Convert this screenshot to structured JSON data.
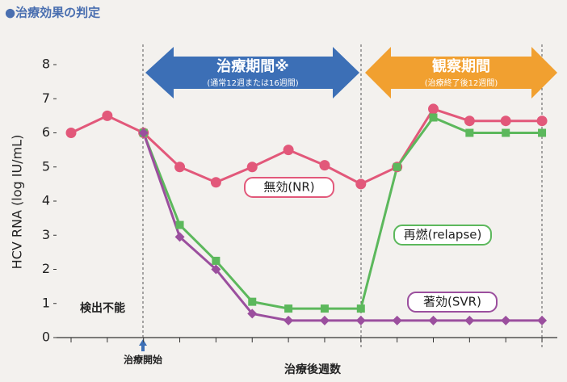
{
  "chart_data": {
    "type": "line",
    "title": "●治療効果の判定",
    "y_label": "HCV RNA (log IU/mL)",
    "x_label": "治療後週数",
    "categories": [
      null,
      null,
      null,
      null,
      null,
      null,
      null,
      null,
      null,
      null,
      null,
      null,
      null,
      null
    ],
    "series": [
      {
        "name": "無効(NR)",
        "color": "#e2587a",
        "values": [
          6,
          6.5,
          6,
          5,
          4.55,
          5,
          5.5,
          5.05,
          4.5,
          5,
          6.7,
          6.35,
          6.35,
          6.35
        ]
      },
      {
        "name": "再燃(relapse)",
        "color": "#5cb85c",
        "values": [
          null,
          null,
          6,
          3.3,
          2.25,
          1.05,
          0.85,
          0.85,
          0.85,
          5,
          6.45,
          6,
          6,
          6
        ]
      },
      {
        "name": "著効(SVR)",
        "color": "#9b4f9e",
        "values": [
          null,
          null,
          6,
          2.95,
          2,
          0.7,
          0.5,
          0.5,
          0.5,
          0.5,
          0.5,
          0.5,
          0.5,
          0.5
        ]
      }
    ],
    "ylim": [
      0,
      8
    ],
    "yticks": [
      0,
      1,
      2,
      3,
      4,
      5,
      6,
      7,
      8
    ],
    "annotations": {
      "treatment": "治療期間※",
      "treatment_note": "(通常12週または16週間)",
      "observation": "観察期間",
      "observation_note": "(治療終了後12週間)",
      "start": "治療開始",
      "undetectable": "検出不能"
    }
  }
}
